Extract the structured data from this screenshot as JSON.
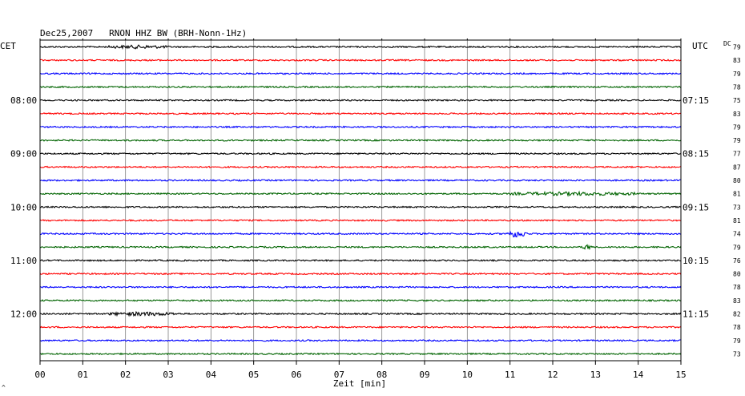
{
  "header": {
    "title": "Dec25,2007   RNON HHZ BW (BRH-Nonn-1Hz)",
    "left_zone": "CET",
    "right_zone": "UTC",
    "dc_label": "DC",
    "corner_mark": "^"
  },
  "colors": {
    "trace_cycle": [
      "#000000",
      "#ff0000",
      "#0000ff",
      "#006400"
    ],
    "grid": "#808080",
    "axis": "#000000"
  },
  "chart_data": {
    "type": "line",
    "title": "Dec25,2007   RNON HHZ BW (BRH-Nonn-1Hz)",
    "xlabel": "Zeit [min]",
    "ylabel": "",
    "xlim": [
      0,
      15
    ],
    "x_ticks": [
      "00",
      "01",
      "02",
      "03",
      "04",
      "05",
      "06",
      "07",
      "08",
      "09",
      "10",
      "11",
      "12",
      "13",
      "14",
      "15"
    ],
    "grid": true,
    "trace_count": 24,
    "left_time_labels": [
      {
        "trace": 4,
        "label": "08:00"
      },
      {
        "trace": 8,
        "label": "09:00"
      },
      {
        "trace": 12,
        "label": "10:00"
      },
      {
        "trace": 16,
        "label": "11:00"
      },
      {
        "trace": 20,
        "label": "12:00"
      }
    ],
    "right_time_labels": [
      {
        "trace": 4,
        "label": "07:15"
      },
      {
        "trace": 8,
        "label": "08:15"
      },
      {
        "trace": 12,
        "label": "09:15"
      },
      {
        "trace": 16,
        "label": "10:15"
      },
      {
        "trace": 20,
        "label": "11:15"
      }
    ],
    "dc_offsets": [
      "79",
      "83",
      "79",
      "78",
      "75",
      "83",
      "79",
      "79",
      "77",
      "87",
      "80",
      "81",
      "73",
      "81",
      "74",
      "79",
      "76",
      "80",
      "78",
      "83",
      "82",
      "78",
      "79",
      "73"
    ],
    "events": [
      {
        "trace": 0,
        "x_start": 1.6,
        "x_end": 3.0,
        "amplitude": 1.5
      },
      {
        "trace": 11,
        "x_start": 11.0,
        "x_end": 14.0,
        "amplitude": 1.6
      },
      {
        "trace": 14,
        "x_start": 10.9,
        "x_end": 11.4,
        "amplitude": 4.0
      },
      {
        "trace": 15,
        "x_start": 12.7,
        "x_end": 12.9,
        "amplitude": 3.0
      },
      {
        "trace": 20,
        "x_start": 1.6,
        "x_end": 3.2,
        "amplitude": 1.8
      }
    ]
  }
}
